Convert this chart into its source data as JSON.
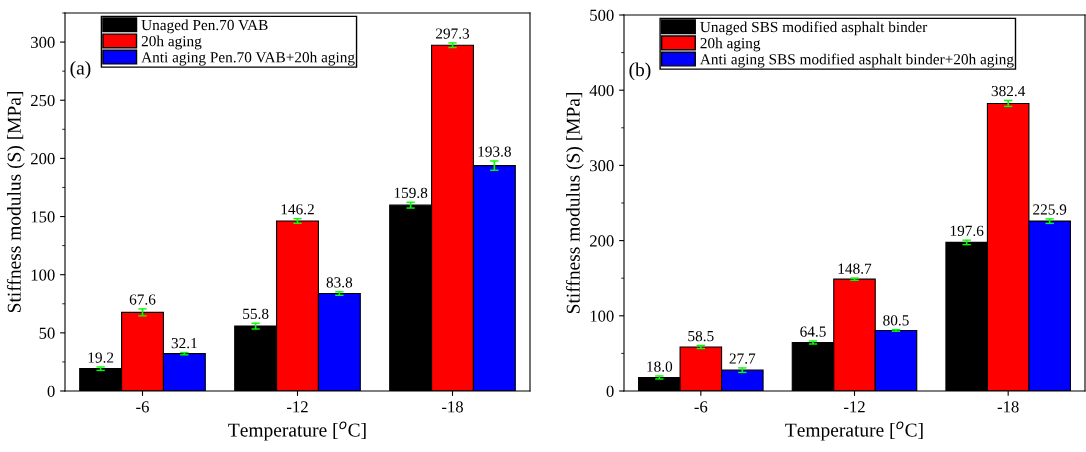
{
  "chart_data": [
    {
      "type": "bar",
      "categories": [
        "-6",
        "-12",
        "-18"
      ],
      "xlabel": "Temperature [$^{o}$C]",
      "ylabel": "Stiffness modulus (S) [MPa]",
      "annotations": [
        "(a)"
      ],
      "ylim": [
        0,
        325
      ],
      "yticks": [
        0,
        50,
        100,
        150,
        200,
        250,
        300
      ],
      "legend": "top left",
      "grid": false,
      "series": [
        {
          "name": "Unaged Pen.70 VAB",
          "color": "#000000",
          "values": [
            19.2,
            55.8,
            159.8
          ],
          "value_labels": [
            "19.2",
            "55.8",
            "159.8"
          ],
          "errors": [
            1.5,
            2.5,
            2.5
          ]
        },
        {
          "name": "20h aging",
          "color": "#ff0000",
          "values": [
            67.6,
            146.2,
            297.3
          ],
          "value_labels": [
            "67.6",
            "146.2",
            "297.3"
          ],
          "errors": [
            3,
            2,
            2
          ]
        },
        {
          "name": "Anti aging Pen.70 VAB+20h aging",
          "color": "#0000ff",
          "values": [
            32.1,
            83.8,
            193.8
          ],
          "value_labels": [
            "32.1",
            "83.8",
            "193.8"
          ],
          "errors": [
            1,
            1.5,
            4
          ]
        }
      ]
    },
    {
      "type": "bar",
      "categories": [
        "-6",
        "-12",
        "-18"
      ],
      "xlabel": "Temperature [$^{o}$C]",
      "ylabel": "Stiffness modulus (S) [MPa]",
      "annotations": [
        "(b)"
      ],
      "ylim": [
        0,
        500
      ],
      "yticks": [
        0,
        100,
        200,
        300,
        400,
        500
      ],
      "legend": "top left",
      "grid": false,
      "series": [
        {
          "name": "Unaged SBS modified asphalt binder",
          "color": "#000000",
          "values": [
            18.0,
            64.5,
            197.6
          ],
          "value_labels": [
            "18.0",
            "64.5",
            "197.6"
          ],
          "errors": [
            2,
            2,
            3
          ]
        },
        {
          "name": "20h aging",
          "color": "#ff0000",
          "values": [
            58.5,
            148.7,
            382.4
          ],
          "value_labels": [
            "58.5",
            "148.7",
            "382.4"
          ],
          "errors": [
            2,
            1.5,
            4
          ]
        },
        {
          "name": "Anti aging SBS modified asphalt binder+20h aging",
          "color": "#0000ff",
          "values": [
            27.7,
            80.5,
            225.9
          ],
          "value_labels": [
            "27.7",
            "80.5",
            "225.9"
          ],
          "errors": [
            3,
            1,
            3
          ]
        }
      ]
    }
  ]
}
